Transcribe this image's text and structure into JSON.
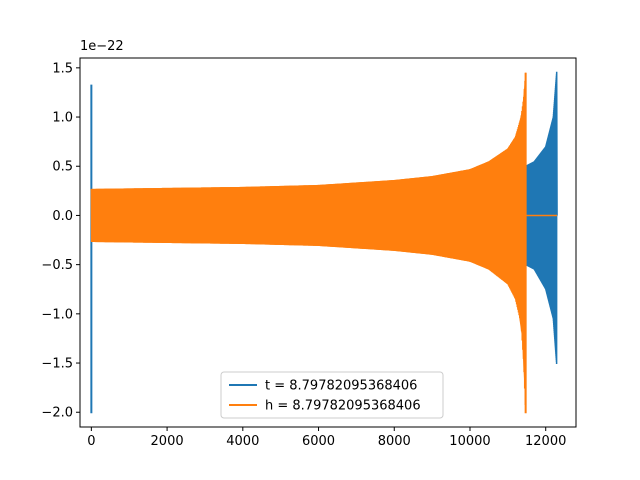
{
  "chart_data": {
    "type": "line",
    "title": "",
    "xlabel": "",
    "ylabel": "",
    "y_offset_label": "1e−22",
    "xlim": [
      -300,
      12800
    ],
    "ylim": [
      -2.15,
      1.6
    ],
    "x_ticks": [
      0,
      2000,
      4000,
      6000,
      8000,
      10000,
      12000
    ],
    "x_tick_labels": [
      "0",
      "2000",
      "4000",
      "6000",
      "8000",
      "10000",
      "12000"
    ],
    "y_ticks": [
      -2.0,
      -1.5,
      -1.0,
      -0.5,
      0.0,
      0.5,
      1.0,
      1.5
    ],
    "y_tick_labels": [
      "−2.0",
      "−1.5",
      "−1.0",
      "−0.5",
      "0.0",
      "0.5",
      "1.0",
      "1.5"
    ],
    "legend_position": "lower center",
    "grid": false,
    "series": [
      {
        "name": "t = 8.79782095368406",
        "color": "#1f77b4",
        "description_points": {
          "spike_x": 0,
          "spike_max": 1.33,
          "spike_min": -2.01,
          "envelope_x": [
            11450,
            11700,
            12000,
            12200,
            12290
          ],
          "envelope_y": [
            0.5,
            0.55,
            0.7,
            1.0,
            1.46
          ],
          "envelope_min_y": [
            -0.5,
            -0.55,
            -0.75,
            -1.05,
            -1.52
          ],
          "end_x": 12300
        }
      },
      {
        "name": "h = 8.79782095368406",
        "color": "#ff7f0e",
        "description_points": {
          "start_x": 0,
          "envelope_x": [
            0,
            2000,
            4000,
            6000,
            8000,
            9000,
            10000,
            10500,
            11000,
            11200,
            11350,
            11420,
            11470
          ],
          "envelope_y": [
            0.27,
            0.28,
            0.29,
            0.31,
            0.36,
            0.4,
            0.47,
            0.55,
            0.68,
            0.8,
            1.0,
            1.2,
            1.45
          ],
          "envelope_min_y": [
            -0.27,
            -0.28,
            -0.29,
            -0.31,
            -0.36,
            -0.4,
            -0.47,
            -0.55,
            -0.7,
            -0.85,
            -1.1,
            -1.5,
            -2.01
          ],
          "flat_start": 11480,
          "flat_end": 12300,
          "flat_value": 0.0
        }
      }
    ]
  }
}
